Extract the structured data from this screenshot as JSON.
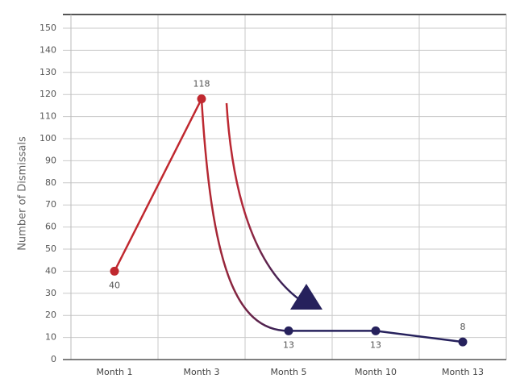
{
  "chart_data": {
    "type": "line",
    "y_label": "Number of Dismissals",
    "categories": [
      "Month 1",
      "Month 3",
      "Month 5",
      "Month 10",
      "Month 13"
    ],
    "values": [
      40,
      118,
      13,
      13,
      8
    ],
    "point_colors": [
      "#c0282f",
      "#c0282f",
      "#26215c",
      "#26215c",
      "#26215c"
    ],
    "ylim": [
      0,
      150
    ],
    "yticks": [
      0,
      10,
      20,
      30,
      40,
      50,
      60,
      70,
      80,
      90,
      100,
      110,
      120,
      130,
      140,
      150
    ],
    "grid": true
  }
}
